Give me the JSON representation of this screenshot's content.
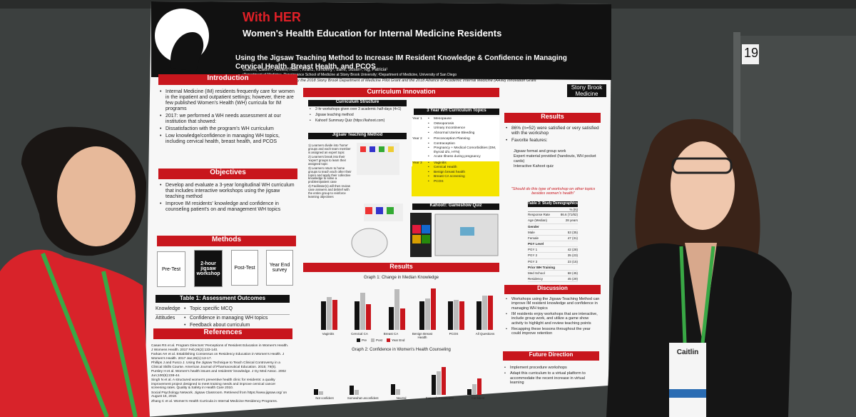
{
  "header": {
    "title": "With HER",
    "title_full": "Women's Health Education for Internal Medicine Residents",
    "subtitle": "Using the Jigsaw Teaching Method to Increase IM Resident Knowledge & Confidence in Managing Cervical Health, Breast Health, and PCOS",
    "authors": "Gauvin, Caitlin¹; Abeles, Ruth¹; Kranz, Kimberly¹; Lane, Susan¹; Ng, Patricia¹",
    "affiliations": "¹Department of Medicine, Renaissance School of Medicine at Stony Brook University; ²Department of Medicine, University of San Diego",
    "support": "This study was supported by the 2018 Stony Brook Department of Medicine Pilot Grant and the 2018 Alliance of Academic Internal Medicine (AAIM) Innovation Grant",
    "logo": [
      "Stony Brook",
      "Medicine"
    ]
  },
  "introduction": {
    "heading": "Introduction",
    "bullets": [
      "Internal Medicine (IM) residents frequently care for women in the inpatient and outpatient settings; however, there are few published Women's Health (WH) curricula for IM programs",
      "2017: we performed a WH needs assessment at our institution that showed:",
      "Dissatisfaction with the program's WH curriculum",
      "Low knowledge/confidence in managing WH topics, including cervical health, breast health, and PCOS"
    ]
  },
  "objectives": {
    "heading": "Objectives",
    "bullets": [
      "Develop and evaluate a 3-year longitudinal WH curriculum that includes interactive workshops using the jigsaw teaching method",
      "Improve IM residents' knowledge and confidence in counseling patient's on and management WH topics"
    ]
  },
  "methods": {
    "heading": "Methods",
    "steps": [
      "Pre-Test",
      "2-hour jigsaw workshop",
      "Post-Test",
      "Year End survey"
    ],
    "table": {
      "title": "Table 1: Assessment Outcomes",
      "rows": [
        {
          "label": "Knowledge",
          "items": [
            "Topic specific MCQ"
          ]
        },
        {
          "label": "Attitudes",
          "items": [
            "Confidence in managing WH topics",
            "Feedback about curriculum"
          ]
        }
      ]
    }
  },
  "references": {
    "heading": "References",
    "items": [
      "Casas RS et al. Program Directors' Perceptions of Resident Education in Women's Health. J Womens Health. 2017 Feb;26(2):133-140.",
      "Farkas AH et al. Establishing Consensus on Residency Education in Women's Health. J Women's Health. 2017 Jan;26(1):13-17.",
      "Phillips J and Fusco J. Using the Jigsaw Technique to Teach Clinical Controversy in a Clinical Skills Course. American Journal of Pharmaceutical Education. 2015; 79(6).",
      "Pursley H et al. Women's health issues and residents' knowledge. J Gy Med Assoc. 2002 Jun;100(6):238-44.",
      "Singh N et al. A structured women's preventive health clinic for residents: a quality improvement project designed to meet training needs and improve cervical cancer screening rates. Quality & Safety in Health Care 2010.",
      "Social Psychology Network. Jigsaw Classroom. Retrieved from https://www.jigsaw.org/ on August 16, 2018.",
      "Zhang C et al. Women's Health Curricula in Internal Medicine Residency Programs."
    ]
  },
  "curriculum": {
    "heading": "Curriculum Innovation",
    "structure": {
      "heading": "Curriculum Structure",
      "bullets": [
        "2-hr workshops given over 3 academic half-days (4+1)",
        "Jigsaw teaching method",
        "Kahoot! Summary Quiz (https://kahoot.com)"
      ]
    },
    "jigsaw": {
      "heading": "Jigsaw Teaching Method",
      "steps": [
        "1) Learners divide into 'home' groups and each team member is assigned an expert topic",
        "2) Learners break into their 'expert' groups to learn their assigned topic",
        "3) Learners return to home groups to teach each other their topics and apply their collective knowledge to solve a problem/patient case",
        "4) Facilitator(s) will then review case answers and debrief with the entire group to reinforce learning objectives"
      ]
    },
    "topics": {
      "heading": "3 Year WH Curriculum Topics",
      "years": [
        {
          "label": "Year 1",
          "items": [
            "Menopause",
            "Osteoporosis",
            "Urinary Incontinence",
            "Abnormal Uterine Bleeding"
          ]
        },
        {
          "label": "Year 2",
          "items": [
            "Preconception Planning",
            "Contraception",
            "Pregnancy + Medical Comorbidities (DM, thyroid d/o, HTN)",
            "Acute Illness during pregnancy"
          ]
        },
        {
          "label": "Year 3",
          "items": [
            "Vaginitis",
            "Cervical Health",
            "Benign breast health",
            "Breast CA screening",
            "PCOS"
          ]
        }
      ]
    },
    "kahoot": "Kahoot!: Gameshow Quiz"
  },
  "results_graphs": {
    "heading": "Results",
    "graph1": {
      "title": "Graph 1: Change in Median Knowledge",
      "categories": [
        "Vaginitis",
        "Cervical CA",
        "Breast CA",
        "Benign Breast Health",
        "PCOS",
        "All Questions"
      ],
      "legend": [
        "Pre",
        "Post",
        "Year End"
      ]
    },
    "graph2": {
      "title": "Graph 2: Confidence in Women's Health Counseling",
      "categories": [
        "Not confident",
        "Somewhat unconfident",
        "Neutral",
        "Somewhat confident",
        "Confident"
      ]
    }
  },
  "results": {
    "heading": "Results",
    "bullets": [
      "86% (n=52) were satisfied or very satisfied with the workshop",
      "Favorite features:"
    ],
    "features": [
      "Jigsaw format and group work",
      "Expert material provided (handouts, WH pocket cards)",
      "Interactive Kahoot quiz"
    ],
    "quote": "\"Should do this type of workshop on other topics besides women's health\"",
    "table": {
      "title": "Table 3: Study Demographics",
      "header": [
        "",
        "% (N)"
      ],
      "rows": [
        [
          "Response Rate",
          "86.6 (71/82)"
        ],
        [
          "Age (Median)",
          "28 years"
        ],
        [
          "Gender",
          ""
        ],
        [
          "Male",
          "53 (35)"
        ],
        [
          "Female",
          "47 (31)"
        ],
        [
          "PGY Level",
          ""
        ],
        [
          "PGY 1",
          "42 (28)"
        ],
        [
          "PGY 2",
          "35 (23)"
        ],
        [
          "PGY 3",
          "23 (15)"
        ],
        [
          "Prior WH Training",
          ""
        ],
        [
          "Med School",
          "68 (45)"
        ],
        [
          "Residency",
          "45 (29)"
        ]
      ]
    }
  },
  "discussion": {
    "heading": "Discussion",
    "bullets": [
      "Workshops using the Jigsaw Teaching Method can improve IM resident knowledge and confidence in managing WH topics",
      "IM residents enjoy workshops that are interactive, include group work, and utilize a game show activity to highlight and review teaching points",
      "Recapping these lessons throughout the year could improve retention"
    ]
  },
  "future": {
    "heading": "Future Direction",
    "bullets": [
      "Implement procedure workshops",
      "Adapt this curriculum to a virtual platform to accommodate the recent increase in virtual learning"
    ]
  },
  "scene": {
    "booth": "19",
    "badge": "Caitlin"
  }
}
